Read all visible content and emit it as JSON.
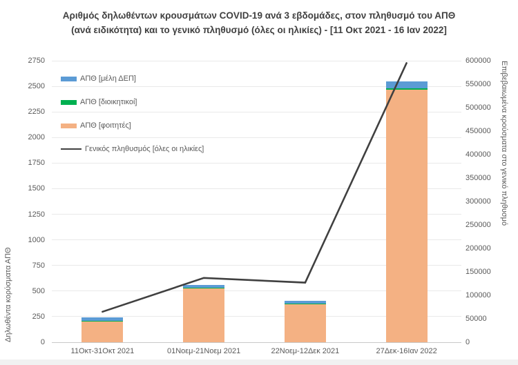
{
  "chart_data": {
    "type": "combo: stacked vertical bars (left axis) + line (right axis), dual y-axes",
    "title_lines": [
      "Αριθμός δηλωθέντων κρουσμάτων COVID-19 ανά 3 εβδομάδες, στον πληθυσμό του ΑΠΘ",
      "(ανά ειδικότητα) και το γενικό πληθυσμό (όλες οι ηλικίες) - [11 Οκτ 2021 - 16 Ιαν 2022]"
    ],
    "categories": [
      "11Οκτ-31Οκτ 2021",
      "01Νοεμ-21Νοεμ 2021",
      "22Νοεμ-12Δεκ 2021",
      "27Δεκ-16Ιαν 2022"
    ],
    "bar_series": [
      {
        "name": "ΑΠΘ [μέλη ΔΕΠ]",
        "color": "#5B9BD5",
        "axis": "left",
        "values": [
          35,
          31,
          25,
          63
        ]
      },
      {
        "name": "ΑΠΘ [διοικητικοί]",
        "color": "#00B050",
        "axis": "left",
        "values": [
          3,
          5,
          3,
          16
        ]
      },
      {
        "name": "ΑΠΘ [φοιτητές]",
        "color": "#F4B183",
        "axis": "left",
        "values": [
          205,
          525,
          375,
          2466
        ]
      }
    ],
    "stacking_note": "stacked bottom-to-top: φοιτητές, διοικητικοί, μέλη ΔΕΠ; totals ≈ [243, 561, 403, 2545]",
    "line_series": {
      "name": "Γενικός πληθυσμός [όλες οι ηλικίες]",
      "color": "#404040",
      "axis": "right",
      "values": [
        65000,
        137000,
        127000,
        595000
      ]
    },
    "left_axis": {
      "label": "Δηλωθέντα κορύσματα ΑΠΘ",
      "min": 0,
      "max": 2750,
      "step": 250,
      "tick_labels": [
        "0",
        "250",
        "500",
        "750",
        "1000",
        "1250",
        "1500",
        "1750",
        "2000",
        "2250",
        "2500",
        "2750"
      ]
    },
    "right_axis": {
      "label": "Επιβεβαιωμένα κρούσματα στο γενικό πληθυσμό",
      "min": 0,
      "max": 600000,
      "step": 50000,
      "tick_labels": [
        "0",
        "50000",
        "100000",
        "150000",
        "200000",
        "250000",
        "300000",
        "350000",
        "400000",
        "450000",
        "500000",
        "550000",
        "600000"
      ]
    },
    "legend_position": "top-left inside plot area, vertical list",
    "grid": "horizontal gridlines every 250 (left axis), light gray",
    "colors": {
      "grid": "#e9e9e9",
      "axis_line": "#c9c9c9",
      "tick_text": "#595959",
      "title_text": "#404040",
      "background": "#ffffff"
    }
  }
}
